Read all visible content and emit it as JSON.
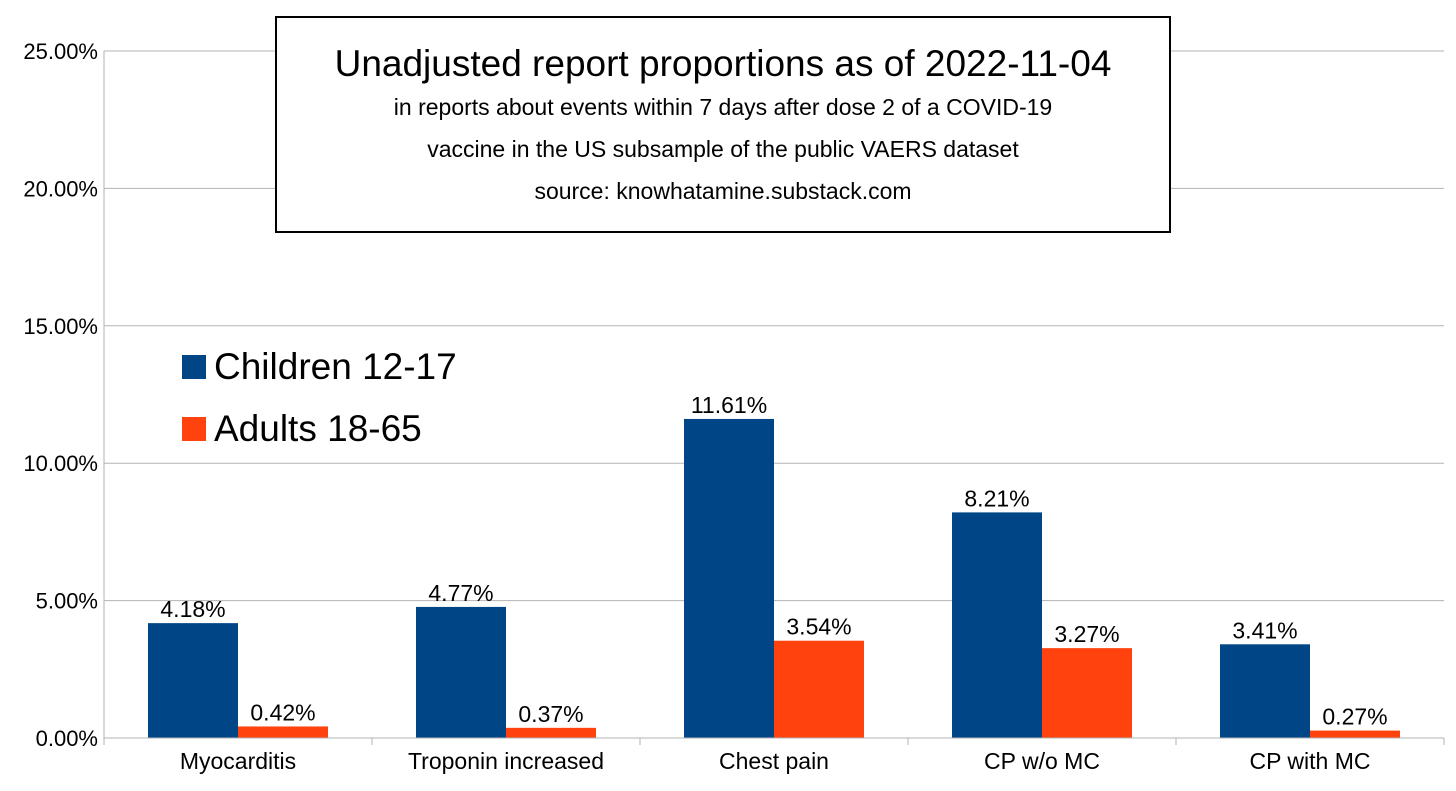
{
  "chart_data": {
    "type": "bar",
    "title": "Unadjusted report proportions as of 2022-11-04",
    "subtitle_lines": [
      "in reports about events within 7 days after dose 2 of a COVID-19",
      "vaccine in the US subsample of the public VAERS dataset",
      "source: knowhatamine.substack.com"
    ],
    "categories": [
      "Myocarditis",
      "Troponin increased",
      "Chest pain",
      "CP w/o MC",
      "CP with MC"
    ],
    "series": [
      {
        "name": "Children 12-17",
        "color": "#004586",
        "values": [
          4.18,
          4.77,
          11.61,
          8.21,
          3.41
        ],
        "labels": [
          "4.18%",
          "4.77%",
          "11.61%",
          "8.21%",
          "3.41%"
        ]
      },
      {
        "name": "Adults 18-65",
        "color": "#ff420e",
        "values": [
          0.42,
          0.37,
          3.54,
          3.27,
          0.27
        ],
        "labels": [
          "0.42%",
          "0.37%",
          "3.54%",
          "3.27%",
          "0.27%"
        ]
      }
    ],
    "yticks": [
      0,
      5,
      10,
      15,
      20,
      25
    ],
    "ytick_labels": [
      "0.00%",
      "5.00%",
      "10.00%",
      "15.00%",
      "20.00%",
      "25.00%"
    ],
    "ylim": [
      0,
      25
    ],
    "grid": true,
    "legend_position": "left"
  }
}
